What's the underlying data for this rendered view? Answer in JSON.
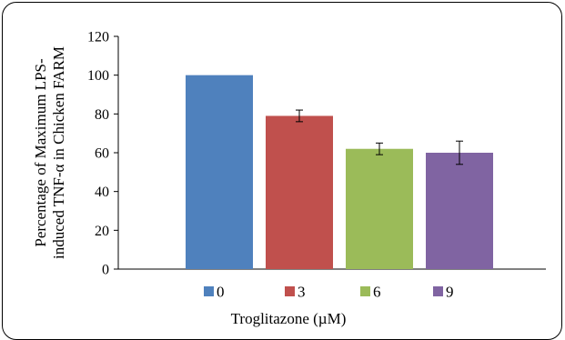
{
  "chart_data": {
    "type": "bar",
    "categories": [
      "0",
      "3",
      "6",
      "9"
    ],
    "values": [
      100,
      79,
      62,
      60
    ],
    "error": [
      0,
      3,
      3,
      6
    ],
    "colors": [
      "#4f81bd",
      "#c0504d",
      "#9bbb59",
      "#8064a2"
    ],
    "ylim": [
      0,
      120
    ],
    "yticks": [
      0,
      20,
      40,
      60,
      80,
      100,
      120
    ],
    "ylabel_line1": "Percentage of Maximum LPS-",
    "ylabel_line2": "induced TNF-α in Chicken FARM",
    "xlabel": "Troglitazone (µM)",
    "legend": [
      "0",
      "3",
      "6",
      "9"
    ],
    "legend_position": "bottom",
    "grid": false
  }
}
